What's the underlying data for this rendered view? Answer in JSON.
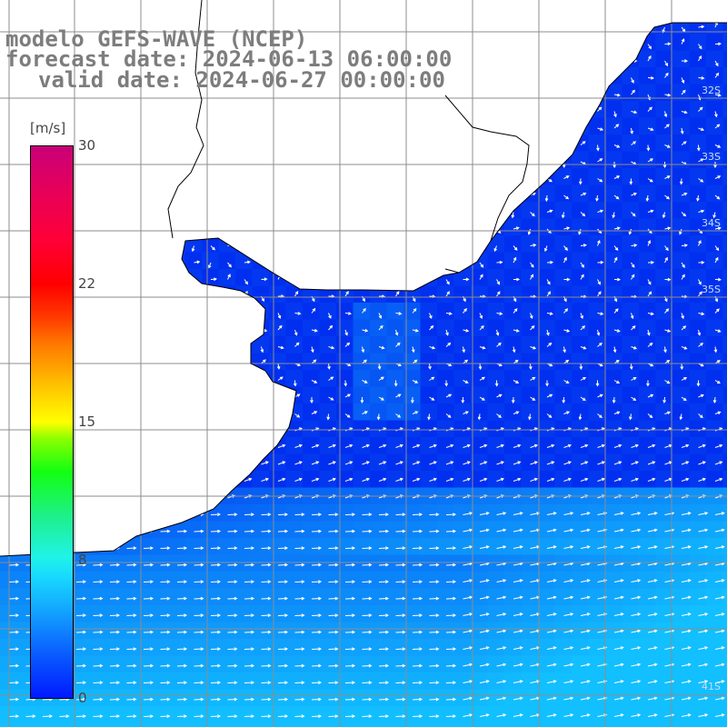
{
  "title": {
    "line1": "modelo GEFS-WAVE (NCEP)",
    "line2": "forecast date: 2024-06-13 06:00:00",
    "line3": "valid date: 2024-06-27 00:00:00"
  },
  "colorbar": {
    "unit": "[m/s]",
    "ticks": [
      "30",
      "22",
      "15",
      "8",
      "0"
    ],
    "range": [
      0,
      30
    ],
    "colors": [
      "#0019ff",
      "#13a6ff",
      "#20f3e8",
      "#12ff12",
      "#ffff00",
      "#ff7a00",
      "#ff0000",
      "#c90078"
    ]
  },
  "latitude_labels": [
    "32S",
    "33S",
    "34S",
    "35S",
    "41S"
  ],
  "colors": {
    "land": "#ffffff",
    "ocean_low": "#0022ee",
    "ocean_mid": "#0a6cff",
    "ocean_high": "#12bfff",
    "grid": "#8c8c8c",
    "coastline": "#000000",
    "arrows": "#ffffff",
    "title_text": "#7d7d7d"
  }
}
